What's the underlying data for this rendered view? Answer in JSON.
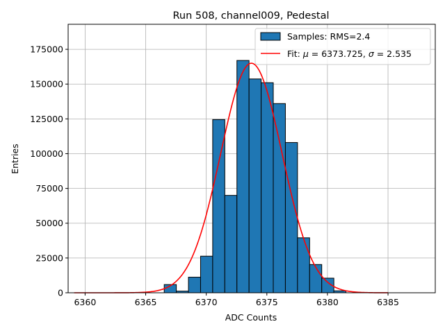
{
  "chart_data": {
    "type": "bar",
    "title": "Run 508, channel009, Pedestal",
    "xlabel": "ADC Counts",
    "ylabel": "Entries",
    "xlim": [
      6358.6,
      6388.9
    ],
    "ylim": [
      0,
      193000
    ],
    "xticks": [
      6360,
      6365,
      6370,
      6375,
      6380,
      6385
    ],
    "xtick_labels": [
      "6360",
      "6365",
      "6370",
      "6375",
      "6380",
      "6385"
    ],
    "yticks": [
      0,
      25000,
      50000,
      75000,
      100000,
      125000,
      150000,
      175000
    ],
    "ytick_labels": [
      "0",
      "25000",
      "50000",
      "75000",
      "100000",
      "125000",
      "150000",
      "175000"
    ],
    "grid": true,
    "legend_position": "top-right",
    "histogram": {
      "name": "Samples: RMS=2.4",
      "color": "#1f77b4",
      "edge_color": "#000000",
      "bin_edges": [
        6366.53,
        6367.53,
        6368.53,
        6369.53,
        6370.53,
        6371.53,
        6372.53,
        6373.53,
        6374.53,
        6375.53,
        6376.53,
        6377.53,
        6378.53,
        6379.53,
        6380.53,
        6381.53
      ],
      "counts": [
        5900,
        1200,
        11200,
        26300,
        124500,
        70000,
        167000,
        153700,
        151000,
        136000,
        108000,
        39500,
        20300,
        10500,
        1400
      ]
    },
    "fit": {
      "name": "Fit: μ = 6373.725, σ = 2.535",
      "label_parts": [
        "Fit: ",
        "μ",
        " = 6373.725, ",
        "σ",
        " = 2.535"
      ],
      "color": "#ff0000",
      "mu": 6373.725,
      "sigma": 2.535,
      "amplitude": 165000,
      "x_range": [
        6359.1,
        6385.0
      ]
    },
    "legend": {
      "entries": [
        "Samples: RMS=2.4",
        "Fit: μ = 6373.725, σ = 2.535"
      ]
    }
  }
}
